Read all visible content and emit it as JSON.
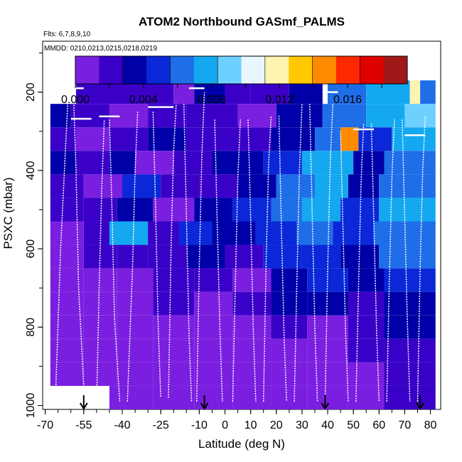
{
  "chart_data": {
    "type": "heatmap",
    "title": "ATOM2 Northbound GASmf_PALMS",
    "subtitle_flights": "Flts: 6,7,8,9,10",
    "subtitle_dates": "MMDD: 0210,0213,0215,0218,0219",
    "xlabel": "Latitude (deg N)",
    "ylabel": "PSXC (mbar)",
    "xlim": [
      -71,
      84
    ],
    "ylim": [
      1010,
      70
    ],
    "x_ticks": [
      "-70",
      "-55",
      "-40",
      "-25",
      "-10",
      "0",
      "10",
      "20",
      "30",
      "40",
      "50",
      "60",
      "70",
      "80"
    ],
    "x_tick_values": [
      -70,
      -55,
      -40,
      -25,
      -10,
      0,
      10,
      20,
      30,
      40,
      50,
      60,
      70,
      80
    ],
    "y_ticks": [
      "200",
      "400",
      "600",
      "800",
      "1000"
    ],
    "y_tick_values": [
      200,
      400,
      600,
      800,
      1000
    ],
    "colorbar": {
      "min": 0.0,
      "max": 0.0195,
      "ticks": [
        "0.000",
        "0.004",
        "0.008",
        "0.012",
        "0.016"
      ],
      "tick_values": [
        0.0,
        0.004,
        0.008,
        0.012,
        0.016
      ],
      "colors": [
        "#7a1fe0",
        "#3a00c8",
        "#0000a8",
        "#0a28d8",
        "#1e6ee8",
        "#14a8f0",
        "#6ed0ff",
        "#e8f6ff",
        "#fff3b0",
        "#ffc800",
        "#ff8a00",
        "#ff2800",
        "#e00000",
        "#a01818"
      ]
    },
    "profile_markers_lat": [
      -55,
      -8,
      39,
      76
    ],
    "pressure_bins": [
      200,
      260,
      320,
      380,
      440,
      500,
      560,
      620,
      680,
      740,
      800,
      860,
      920,
      980
    ],
    "heatmap_rows": [
      {
        "p": 200,
        "segments": [
          [
            -58,
            -20,
            0.0015
          ],
          [
            -20,
            -12,
            0.0008
          ],
          [
            -12,
            0,
            0.003
          ],
          [
            0,
            10,
            0.002
          ],
          [
            10,
            25,
            0.0025
          ],
          [
            25,
            38,
            0.0035
          ],
          [
            40,
            55,
            0.006
          ],
          [
            55,
            72,
            0.007
          ],
          [
            72,
            76,
            0.012
          ],
          [
            76,
            82,
            0.006
          ]
        ]
      },
      {
        "p": 260,
        "segments": [
          [
            -68,
            -60,
            0.003
          ],
          [
            -60,
            -45,
            0.002
          ],
          [
            -45,
            -30,
            0.0012
          ],
          [
            -30,
            -15,
            0.0022
          ],
          [
            -15,
            5,
            0.0018
          ],
          [
            5,
            20,
            0.0012
          ],
          [
            20,
            38,
            0.0028
          ],
          [
            38,
            55,
            0.0065
          ],
          [
            55,
            70,
            0.0075
          ],
          [
            70,
            82,
            0.009
          ]
        ]
      },
      {
        "p": 320,
        "segments": [
          [
            -68,
            -58,
            0.0025
          ],
          [
            -58,
            -45,
            0.0012
          ],
          [
            -45,
            -30,
            0.0018
          ],
          [
            -30,
            -15,
            0.003
          ],
          [
            -15,
            0,
            0.0015
          ],
          [
            0,
            18,
            0.0022
          ],
          [
            18,
            35,
            0.004
          ],
          [
            35,
            45,
            0.006
          ],
          [
            45,
            52,
            0.014
          ],
          [
            52,
            65,
            0.0055
          ],
          [
            65,
            82,
            0.007
          ]
        ]
      },
      {
        "p": 380,
        "segments": [
          [
            -68,
            -58,
            0.003
          ],
          [
            -58,
            -45,
            0.0016
          ],
          [
            -45,
            -35,
            0.004
          ],
          [
            -35,
            -20,
            0.0012
          ],
          [
            -20,
            -5,
            0.0025
          ],
          [
            -5,
            15,
            0.0035
          ],
          [
            15,
            30,
            0.0045
          ],
          [
            30,
            40,
            0.008
          ],
          [
            40,
            50,
            0.007
          ],
          [
            50,
            62,
            0.004
          ],
          [
            62,
            82,
            0.0065
          ]
        ]
      },
      {
        "p": 440,
        "segments": [
          [
            -68,
            -55,
            0.002
          ],
          [
            -55,
            -40,
            0.0012
          ],
          [
            -40,
            -25,
            0.005
          ],
          [
            -25,
            -10,
            0.002
          ],
          [
            -10,
            5,
            0.0015
          ],
          [
            5,
            20,
            0.003
          ],
          [
            20,
            35,
            0.0058
          ],
          [
            35,
            48,
            0.0075
          ],
          [
            48,
            60,
            0.0035
          ],
          [
            60,
            82,
            0.006
          ]
        ]
      },
      {
        "p": 500,
        "segments": [
          [
            -68,
            -55,
            0.0015
          ],
          [
            -55,
            -42,
            0.0018
          ],
          [
            -42,
            -28,
            0.0035
          ],
          [
            -28,
            -12,
            0.0012
          ],
          [
            -12,
            3,
            0.0028
          ],
          [
            3,
            18,
            0.0042
          ],
          [
            18,
            30,
            0.0065
          ],
          [
            30,
            45,
            0.007
          ],
          [
            45,
            60,
            0.0045
          ],
          [
            60,
            82,
            0.007
          ]
        ]
      },
      {
        "p": 560,
        "segments": [
          [
            -68,
            -55,
            0.0012
          ],
          [
            -55,
            -45,
            0.0022
          ],
          [
            -45,
            -30,
            0.0078
          ],
          [
            -30,
            -18,
            0.002
          ],
          [
            -18,
            -5,
            0.0048
          ],
          [
            -5,
            12,
            0.0032
          ],
          [
            12,
            28,
            0.005
          ],
          [
            28,
            42,
            0.0062
          ],
          [
            42,
            58,
            0.0055
          ],
          [
            58,
            82,
            0.0068
          ]
        ]
      },
      {
        "p": 620,
        "segments": [
          [
            -68,
            -55,
            0.001
          ],
          [
            -55,
            -42,
            0.0014
          ],
          [
            -42,
            -30,
            0.0025
          ],
          [
            -30,
            -15,
            0.0015
          ],
          [
            -15,
            0,
            0.004
          ],
          [
            0,
            15,
            0.0022
          ],
          [
            15,
            30,
            0.0045
          ],
          [
            30,
            45,
            0.0055
          ],
          [
            45,
            60,
            0.0038
          ],
          [
            60,
            82,
            0.006
          ]
        ]
      },
      {
        "p": 680,
        "segments": [
          [
            -68,
            -55,
            0.0004
          ],
          [
            -55,
            -42,
            0.001
          ],
          [
            -42,
            -28,
            0.0008
          ],
          [
            -28,
            -12,
            0.0015
          ],
          [
            -12,
            3,
            0.0025
          ],
          [
            3,
            18,
            0.0012
          ],
          [
            18,
            32,
            0.0035
          ],
          [
            32,
            48,
            0.005
          ],
          [
            48,
            62,
            0.0028
          ],
          [
            62,
            82,
            0.0045
          ]
        ]
      },
      {
        "p": 740,
        "segments": [
          [
            -68,
            -55,
            0.0003
          ],
          [
            -55,
            -42,
            0.0012
          ],
          [
            -42,
            -28,
            0.0006
          ],
          [
            -28,
            -12,
            0.0018
          ],
          [
            -12,
            3,
            0.0009
          ],
          [
            3,
            18,
            0.0016
          ],
          [
            18,
            32,
            0.0028
          ],
          [
            32,
            48,
            0.004
          ],
          [
            48,
            62,
            0.0022
          ],
          [
            62,
            82,
            0.0038
          ]
        ]
      },
      {
        "p": 800,
        "segments": [
          [
            -68,
            -55,
            0.0002
          ],
          [
            -55,
            -42,
            0.0008
          ],
          [
            -42,
            -28,
            0.0004
          ],
          [
            -28,
            -12,
            0.0012
          ],
          [
            -12,
            3,
            0.0007
          ],
          [
            3,
            18,
            0.0004
          ],
          [
            18,
            32,
            0.002
          ],
          [
            32,
            48,
            0.0012
          ],
          [
            48,
            62,
            0.0018
          ],
          [
            62,
            82,
            0.003
          ]
        ]
      },
      {
        "p": 860,
        "segments": [
          [
            -68,
            -55,
            0.0002
          ],
          [
            -55,
            -42,
            0.0004
          ],
          [
            -42,
            -28,
            0.0003
          ],
          [
            -28,
            -12,
            0.0007
          ],
          [
            -12,
            3,
            0.0005
          ],
          [
            3,
            18,
            0.0003
          ],
          [
            18,
            32,
            0.0012
          ],
          [
            32,
            48,
            0.0006
          ],
          [
            48,
            62,
            0.0015
          ],
          [
            62,
            82,
            0.0025
          ]
        ]
      },
      {
        "p": 920,
        "segments": [
          [
            -68,
            -55,
            0.0001
          ],
          [
            -55,
            -42,
            0.0003
          ],
          [
            -42,
            -28,
            0.0002
          ],
          [
            -28,
            -12,
            0.0006
          ],
          [
            -12,
            3,
            0.0003
          ],
          [
            3,
            18,
            0.0002
          ],
          [
            18,
            32,
            0.0008
          ],
          [
            32,
            48,
            0.0004
          ],
          [
            48,
            62,
            0.001
          ],
          [
            62,
            82,
            0.002
          ]
        ]
      },
      {
        "p": 980,
        "segments": [
          [
            -45,
            -28,
            0.0002
          ],
          [
            -28,
            -12,
            0.0005
          ],
          [
            -12,
            3,
            0.0003
          ],
          [
            3,
            18,
            0.0002
          ],
          [
            18,
            32,
            0.0012
          ],
          [
            32,
            48,
            0.0005
          ],
          [
            48,
            62,
            0.0012
          ],
          [
            62,
            82,
            0.0018
          ]
        ]
      }
    ],
    "profiles": [
      {
        "lat": [
          -66,
          -64,
          -62,
          -61
        ],
        "p": [
          980,
          600,
          330,
          200
        ]
      },
      {
        "lat": [
          -59,
          -58,
          -57,
          -55,
          -52
        ],
        "p": [
          200,
          400,
          700,
          950,
          1000
        ]
      },
      {
        "lat": [
          -50,
          -49,
          -48,
          -47
        ],
        "p": [
          1000,
          700,
          450,
          270
        ]
      },
      {
        "lat": [
          -45,
          -44,
          -43,
          -41
        ],
        "p": [
          270,
          500,
          780,
          990
        ]
      },
      {
        "lat": [
          -38,
          -36,
          -35,
          -34
        ],
        "p": [
          990,
          650,
          400,
          250
        ]
      },
      {
        "lat": [
          -28,
          -27,
          -26,
          -25
        ],
        "p": [
          250,
          500,
          800,
          980
        ]
      },
      {
        "lat": [
          -22,
          -21,
          -20,
          -19
        ],
        "p": [
          980,
          600,
          350,
          230
        ]
      },
      {
        "lat": [
          -16,
          -15,
          -14,
          -13
        ],
        "p": [
          230,
          520,
          820,
          990
        ]
      },
      {
        "lat": [
          -11,
          -10,
          -9,
          -8
        ],
        "p": [
          990,
          640,
          360,
          200
        ]
      },
      {
        "lat": [
          -4,
          -3,
          -2,
          -1
        ],
        "p": [
          270,
          540,
          800,
          990
        ]
      },
      {
        "lat": [
          3,
          4,
          5,
          6
        ],
        "p": [
          990,
          700,
          420,
          270
        ]
      },
      {
        "lat": [
          9,
          10,
          11,
          12
        ],
        "p": [
          270,
          520,
          800,
          990
        ]
      },
      {
        "lat": [
          15,
          16,
          17,
          18
        ],
        "p": [
          990,
          640,
          380,
          260
        ]
      },
      {
        "lat": [
          21,
          22,
          23,
          24
        ],
        "p": [
          260,
          550,
          820,
          990
        ]
      },
      {
        "lat": [
          27,
          28,
          29,
          30
        ],
        "p": [
          990,
          680,
          400,
          230
        ]
      },
      {
        "lat": [
          33,
          34,
          35,
          36
        ],
        "p": [
          230,
          520,
          800,
          990
        ]
      },
      {
        "lat": [
          39,
          40,
          41,
          42
        ],
        "p": [
          990,
          650,
          380,
          230
        ]
      },
      {
        "lat": [
          45,
          46,
          47,
          48
        ],
        "p": [
          300,
          560,
          820,
          990
        ]
      },
      {
        "lat": [
          51,
          52,
          53,
          54
        ],
        "p": [
          990,
          700,
          430,
          280
        ]
      },
      {
        "lat": [
          57,
          58,
          59,
          60
        ],
        "p": [
          280,
          540,
          800,
          990
        ]
      },
      {
        "lat": [
          63,
          64,
          65,
          66
        ],
        "p": [
          990,
          680,
          420,
          270
        ]
      },
      {
        "lat": [
          69,
          70,
          71,
          72
        ],
        "p": [
          270,
          520,
          780,
          990
        ]
      },
      {
        "lat": [
          75,
          76,
          77,
          78
        ],
        "p": [
          990,
          650,
          400,
          260
        ]
      }
    ],
    "flight_tracks": [
      {
        "lat": [
          -59,
          -55
        ],
        "p": 190
      },
      {
        "lat": [
          -30,
          -20
        ],
        "p": 238
      },
      {
        "lat": [
          -49,
          -41
        ],
        "p": 262
      },
      {
        "lat": [
          -14,
          -8
        ],
        "p": 190
      },
      {
        "lat": [
          38,
          44
        ],
        "p": 200
      },
      {
        "lat": [
          -60,
          -52
        ],
        "p": 268
      },
      {
        "lat": [
          50,
          58
        ],
        "p": 295
      },
      {
        "lat": [
          70,
          78
        ],
        "p": 310
      }
    ]
  }
}
